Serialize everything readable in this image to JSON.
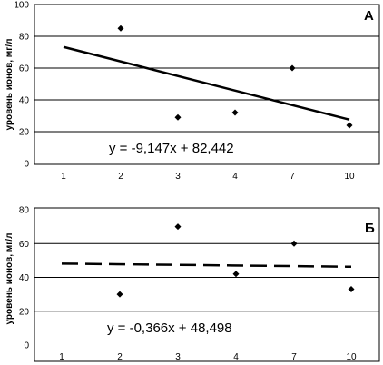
{
  "chart_data": [
    {
      "type": "scatter",
      "panel_label": "А",
      "ylabel": "уровень ионов, мг/л",
      "x_categories": [
        "1",
        "2",
        "3",
        "4",
        "7",
        "10"
      ],
      "ylim": [
        0,
        100
      ],
      "y_ticks": [
        "0",
        "20",
        "40",
        "60",
        "80",
        "100"
      ],
      "grid": true,
      "series": [
        {
          "marker": "diamond",
          "points": [
            {
              "x": "2",
              "y": 85
            },
            {
              "x": "3",
              "y": 29
            },
            {
              "x": "4",
              "y": 32
            },
            {
              "x": "7",
              "y": 60
            },
            {
              "x": "10",
              "y": 24
            }
          ]
        }
      ],
      "trendline": {
        "style": "solid",
        "slope": -9.147,
        "intercept": 82.442,
        "x_start": 1.0,
        "x_end": 6.0
      },
      "equation": "y = -9,147x + 82,442"
    },
    {
      "type": "scatter",
      "panel_label": "Б",
      "ylabel": "уровень ионов, мг/л",
      "x_categories": [
        "1",
        "2",
        "3",
        "4",
        "7",
        "10"
      ],
      "ylim": [
        0,
        80
      ],
      "y_ticks": [
        "0",
        "20",
        "40",
        "60",
        "80"
      ],
      "grid": true,
      "series": [
        {
          "marker": "diamond",
          "points": [
            {
              "x": "2",
              "y": 30
            },
            {
              "x": "3",
              "y": 70
            },
            {
              "x": "4",
              "y": 42
            },
            {
              "x": "7",
              "y": 60
            },
            {
              "x": "10",
              "y": 33
            }
          ]
        }
      ],
      "trendline": {
        "style": "dashed",
        "slope": -0.366,
        "intercept": 48.498,
        "x_start": 1.0,
        "x_end": 6.0
      },
      "equation": "y = -0,366x + 48,498"
    }
  ]
}
